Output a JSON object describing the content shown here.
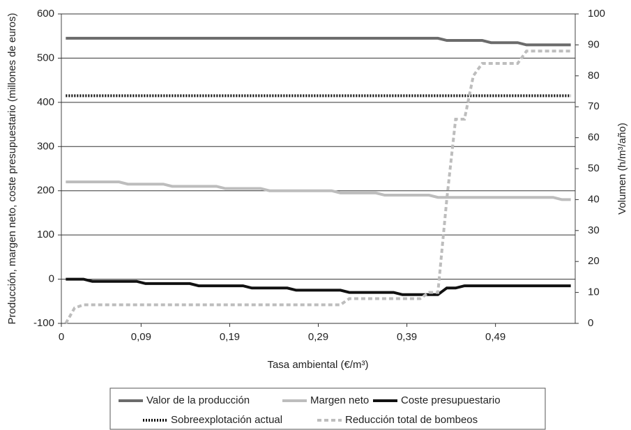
{
  "chart_data": {
    "type": "line",
    "ylabel": "Producción, margen neto, coste presupuestario (millones de euros)",
    "y2label": "Volumen (h/m³/año)",
    "xlabel": "Tasa ambiental (€/m³)",
    "x": [
      0.005,
      0.015,
      0.025,
      0.035,
      0.045,
      0.055,
      0.065,
      0.075,
      0.085,
      0.095,
      0.105,
      0.115,
      0.125,
      0.135,
      0.145,
      0.155,
      0.165,
      0.175,
      0.185,
      0.195,
      0.205,
      0.215,
      0.225,
      0.235,
      0.245,
      0.255,
      0.265,
      0.275,
      0.285,
      0.295,
      0.305,
      0.315,
      0.325,
      0.335,
      0.345,
      0.355,
      0.365,
      0.375,
      0.385,
      0.395,
      0.405,
      0.415,
      0.425,
      0.435,
      0.445,
      0.455,
      0.465,
      0.475,
      0.485,
      0.495,
      0.505,
      0.515,
      0.525,
      0.535,
      0.545,
      0.555,
      0.565,
      0.575
    ],
    "xlim": [
      0,
      0.58
    ],
    "xticks": [
      0,
      {
        "value": 0.09,
        "label": "0,09"
      },
      {
        "value": 0.19,
        "label": "0,19"
      },
      {
        "value": 0.29,
        "label": "0,29"
      },
      {
        "value": 0.39,
        "label": "0,39"
      },
      {
        "value": 0.49,
        "label": "0,49"
      }
    ],
    "ylim": [
      -100,
      600
    ],
    "yticks": [
      -100,
      0,
      100,
      200,
      300,
      400,
      500,
      600
    ],
    "y2lim": [
      0,
      100
    ],
    "y2ticks": [
      0,
      10,
      20,
      30,
      40,
      50,
      60,
      70,
      80,
      90,
      100
    ],
    "grid": true,
    "series": [
      {
        "name": "Valor de la producción",
        "color": "#6b6b6b",
        "dash": "solid",
        "values": [
          545,
          545,
          545,
          545,
          545,
          545,
          545,
          545,
          545,
          545,
          545,
          545,
          545,
          545,
          545,
          545,
          545,
          545,
          545,
          545,
          545,
          545,
          545,
          545,
          545,
          545,
          545,
          545,
          545,
          545,
          545,
          545,
          545,
          545,
          545,
          545,
          545,
          545,
          545,
          545,
          545,
          545,
          545,
          540,
          540,
          540,
          540,
          540,
          535,
          535,
          535,
          535,
          530,
          530,
          530,
          530,
          530,
          530
        ]
      },
      {
        "name": "Margen neto",
        "color": "#bdbdbd",
        "dash": "solid",
        "values": [
          220,
          220,
          220,
          220,
          220,
          220,
          220,
          215,
          215,
          215,
          215,
          215,
          210,
          210,
          210,
          210,
          210,
          210,
          205,
          205,
          205,
          205,
          205,
          200,
          200,
          200,
          200,
          200,
          200,
          200,
          200,
          195,
          195,
          195,
          195,
          195,
          190,
          190,
          190,
          190,
          190,
          190,
          185,
          185,
          185,
          185,
          185,
          185,
          185,
          185,
          185,
          185,
          185,
          185,
          185,
          185,
          180,
          180
        ]
      },
      {
        "name": "Coste presupuestario",
        "color": "#111111",
        "dash": "solid",
        "values": [
          0,
          0,
          0,
          -5,
          -5,
          -5,
          -5,
          -5,
          -5,
          -10,
          -10,
          -10,
          -10,
          -10,
          -10,
          -15,
          -15,
          -15,
          -15,
          -15,
          -15,
          -20,
          -20,
          -20,
          -20,
          -20,
          -25,
          -25,
          -25,
          -25,
          -25,
          -25,
          -30,
          -30,
          -30,
          -30,
          -30,
          -30,
          -35,
          -35,
          -35,
          -35,
          -35,
          -20,
          -20,
          -15,
          -15,
          -15,
          -15,
          -15,
          -15,
          -15,
          -15,
          -15,
          -15,
          -15,
          -15,
          -15
        ]
      },
      {
        "name": "Sobreexplotación actual",
        "color": "#111111",
        "dash": "dot",
        "values": [
          415,
          415,
          415,
          415,
          415,
          415,
          415,
          415,
          415,
          415,
          415,
          415,
          415,
          415,
          415,
          415,
          415,
          415,
          415,
          415,
          415,
          415,
          415,
          415,
          415,
          415,
          415,
          415,
          415,
          415,
          415,
          415,
          415,
          415,
          415,
          415,
          415,
          415,
          415,
          415,
          415,
          415,
          415,
          415,
          415,
          415,
          415,
          415,
          415,
          415,
          415,
          415,
          415,
          415,
          415,
          415,
          415,
          415
        ]
      },
      {
        "name": "Reducción total de bombeos",
        "color": "#bdbdbd",
        "dash": "dash",
        "axis": "y2",
        "values": [
          0,
          5,
          6,
          6,
          6,
          6,
          6,
          6,
          6,
          6,
          6,
          6,
          6,
          6,
          6,
          6,
          6,
          6,
          6,
          6,
          6,
          6,
          6,
          6,
          6,
          6,
          6,
          6,
          6,
          6,
          6,
          6,
          8,
          8,
          8,
          8,
          8,
          8,
          8,
          8,
          8,
          10,
          10,
          40,
          66,
          66,
          80,
          84,
          84,
          84,
          84,
          84,
          88,
          88,
          88,
          88,
          88,
          88
        ]
      }
    ]
  }
}
